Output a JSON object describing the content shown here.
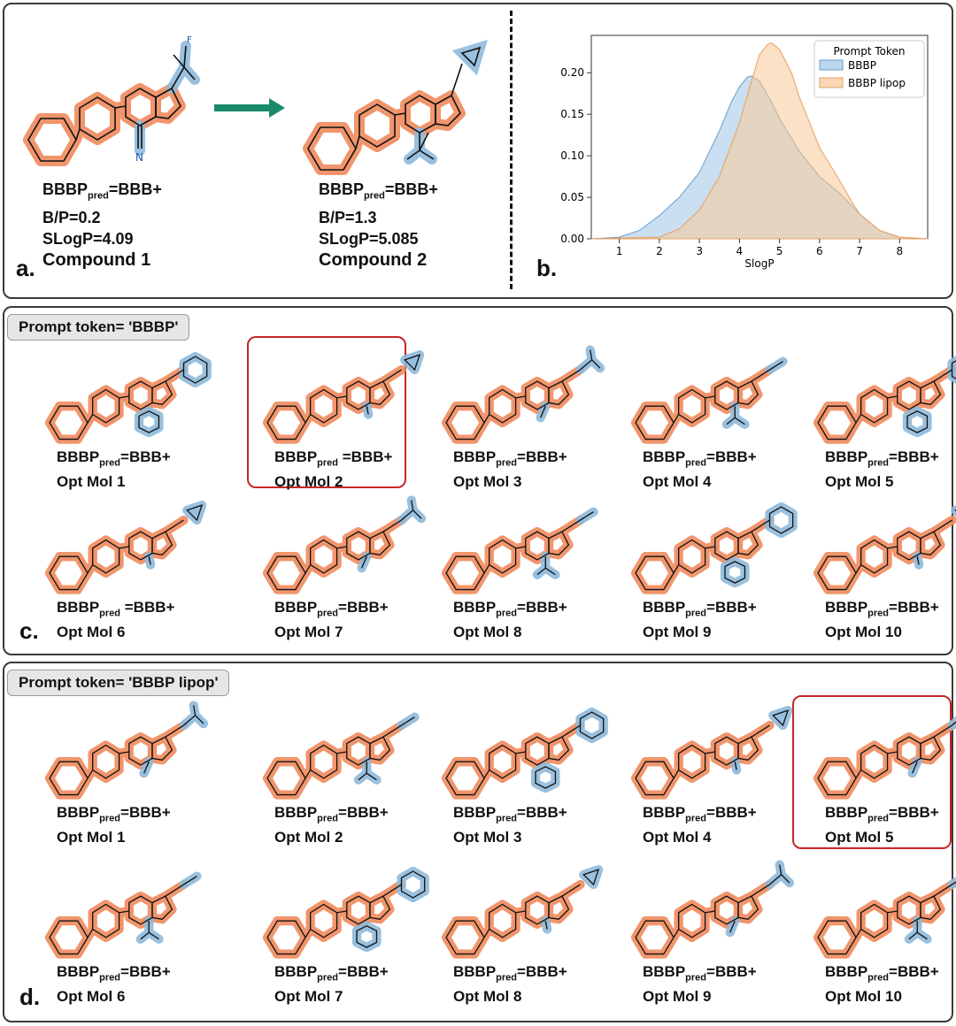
{
  "panel_a": {
    "letter": "a.",
    "compounds": [
      {
        "bbbp_prefix": "BBBP",
        "bbbp_sub": "pred",
        "bbbp_value": "=BBB+",
        "bp": "B/P=0.2",
        "slogp": "SLogP=4.09",
        "name": "Compound 1"
      },
      {
        "bbbp_prefix": "BBBP",
        "bbbp_sub": "pred",
        "bbbp_value": "=BBB+",
        "bp": "B/P=1.3",
        "slogp": "SLogP=5.085",
        "name": "Compound 2"
      }
    ],
    "atom_labels": {
      "f": "F",
      "n": "N"
    }
  },
  "panel_b": {
    "letter": "b.",
    "chart_data": {
      "type": "area",
      "xlabel": "SlogP",
      "ylabel": "",
      "xlim": [
        0.3,
        8.7
      ],
      "ylim": [
        0,
        0.245
      ],
      "xticks": [
        "1",
        "2",
        "3",
        "4",
        "5",
        "6",
        "7",
        "8"
      ],
      "yticks": [
        "0.00",
        "0.05",
        "0.10",
        "0.15",
        "0.20"
      ],
      "legend_title": "Prompt Token",
      "legend_position": "top-right",
      "series": [
        {
          "name": "BBBP",
          "color": "#9ec5e8",
          "x": [
            0.3,
            1.0,
            1.5,
            2.0,
            2.5,
            3.0,
            3.5,
            3.8,
            4.0,
            4.2,
            4.3,
            4.5,
            4.8,
            5.0,
            5.5,
            6.0,
            6.5,
            7.0,
            7.5,
            8.0,
            8.7
          ],
          "y": [
            0.0,
            0.002,
            0.01,
            0.028,
            0.05,
            0.08,
            0.13,
            0.165,
            0.183,
            0.195,
            0.196,
            0.19,
            0.165,
            0.145,
            0.105,
            0.075,
            0.055,
            0.03,
            0.01,
            0.002,
            0.0
          ]
        },
        {
          "name": "BBBP lipop",
          "color": "#f8c896",
          "x": [
            0.3,
            2.0,
            2.5,
            3.0,
            3.5,
            4.0,
            4.3,
            4.5,
            4.7,
            4.8,
            5.0,
            5.3,
            5.5,
            6.0,
            6.5,
            6.8,
            7.0,
            7.5,
            8.0,
            8.7
          ],
          "y": [
            0.0,
            0.002,
            0.012,
            0.035,
            0.075,
            0.14,
            0.19,
            0.222,
            0.234,
            0.236,
            0.228,
            0.2,
            0.17,
            0.11,
            0.07,
            0.045,
            0.03,
            0.01,
            0.002,
            0.0
          ]
        }
      ]
    }
  },
  "panel_c": {
    "letter": "c.",
    "prompt": "Prompt token= 'BBBP'",
    "molecules": [
      {
        "bbbp": "BBBP",
        "sub": "pred",
        "value": "=BBB+",
        "name": "Opt Mol 1"
      },
      {
        "bbbp": "BBBP",
        "sub": "pred",
        "value": " =BBB+",
        "name": "Opt Mol 2"
      },
      {
        "bbbp": "BBBP",
        "sub": "pred",
        "value": "=BBB+",
        "name": "Opt Mol 3"
      },
      {
        "bbbp": "BBBP",
        "sub": "pred",
        "value": "=BBB+",
        "name": "Opt Mol 4"
      },
      {
        "bbbp": "BBBP",
        "sub": "pred",
        "value": "=BBB+",
        "name": "Opt Mol 5"
      },
      {
        "bbbp": "BBBP",
        "sub": "pred",
        "value": " =BBB+",
        "name": "Opt Mol 6"
      },
      {
        "bbbp": "BBBP",
        "sub": "pred",
        "value": "=BBB+",
        "name": "Opt Mol 7"
      },
      {
        "bbbp": "BBBP",
        "sub": "pred",
        "value": "=BBB+",
        "name": "Opt Mol 8"
      },
      {
        "bbbp": "BBBP",
        "sub": "pred",
        "value": "=BBB+",
        "name": "Opt Mol 9"
      },
      {
        "bbbp": "BBBP",
        "sub": "pred",
        "value": "=BBB+",
        "name": "Opt Mol 10"
      }
    ]
  },
  "panel_d": {
    "letter": "d.",
    "prompt": "Prompt token= 'BBBP lipop'",
    "molecules": [
      {
        "bbbp": "BBBP",
        "sub": "pred",
        "value": "=BBB+",
        "name": "Opt Mol 1"
      },
      {
        "bbbp": "BBBP",
        "sub": "pred",
        "value": "=BBB+",
        "name": "Opt Mol 2"
      },
      {
        "bbbp": "BBBP",
        "sub": "pred",
        "value": "=BBB+",
        "name": "Opt Mol 3"
      },
      {
        "bbbp": "BBBP",
        "sub": "pred",
        "value": "=BBB+",
        "name": "Opt Mol 4"
      },
      {
        "bbbp": "BBBP",
        "sub": "pred",
        "value": "=BBB+",
        "name": "Opt Mol 5"
      },
      {
        "bbbp": "BBBP",
        "sub": "pred",
        "value": "=BBB+",
        "name": "Opt Mol 6"
      },
      {
        "bbbp": "BBBP",
        "sub": "pred",
        "value": "=BBB+",
        "name": "Opt Mol 7"
      },
      {
        "bbbp": "BBBP",
        "sub": "pred",
        "value": "=BBB+",
        "name": "Opt Mol 8"
      },
      {
        "bbbp": "BBBP",
        "sub": "pred",
        "value": "=BBB+",
        "name": "Opt Mol 9"
      },
      {
        "bbbp": "BBBP",
        "sub": "pred",
        "value": "=BBB+",
        "name": "Opt Mol 10"
      }
    ]
  },
  "colors": {
    "scaffold": "#f08a5d",
    "substituent": "#8fbadb",
    "arrow": "#1a8a6a",
    "highlight": "#c62828"
  }
}
